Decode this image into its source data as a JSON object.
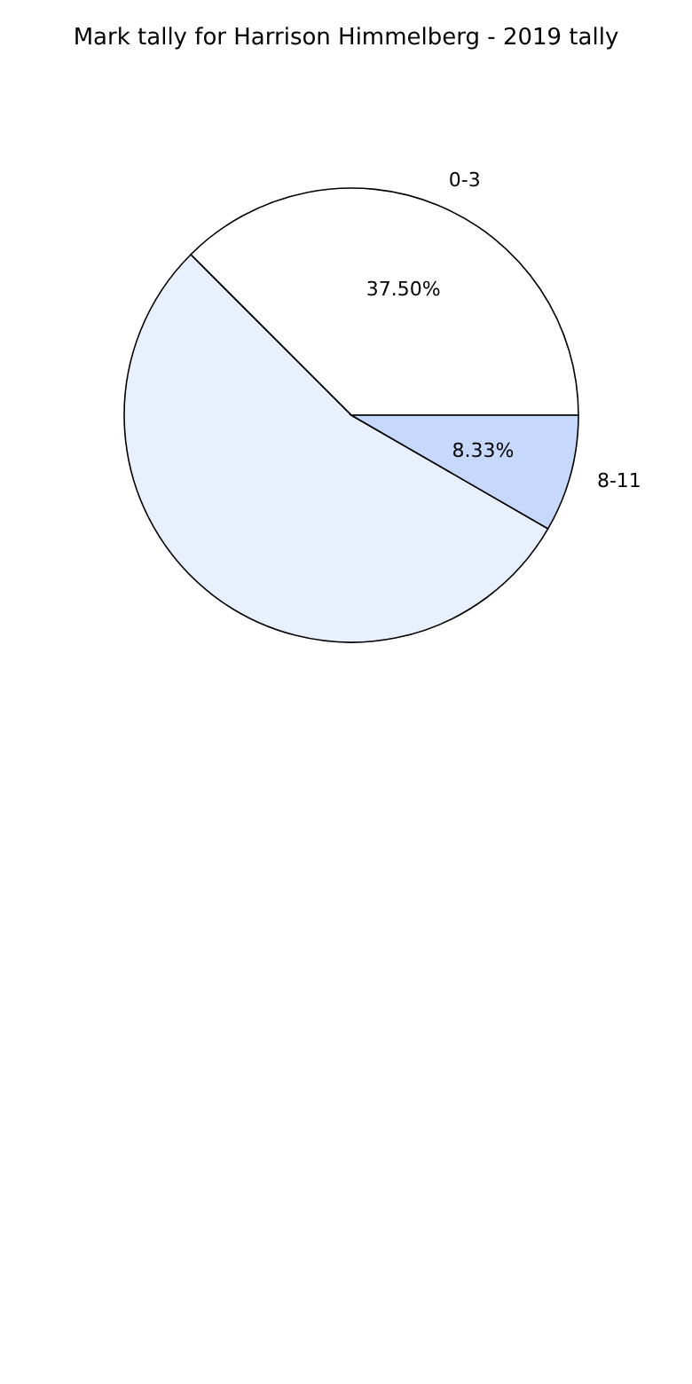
{
  "chart_data": {
    "type": "pie",
    "title": "Mark tally for Harrison Himmelberg - 2019 tally",
    "categories": [
      "0-3",
      null,
      "8-11"
    ],
    "values": [
      37.5,
      54.17,
      8.33
    ],
    "colors": [
      "#ffffff",
      "#e8f0fe",
      "#c6d9fd"
    ],
    "value_labels": [
      "37.50%",
      null,
      "8.33%"
    ],
    "legend": false
  }
}
